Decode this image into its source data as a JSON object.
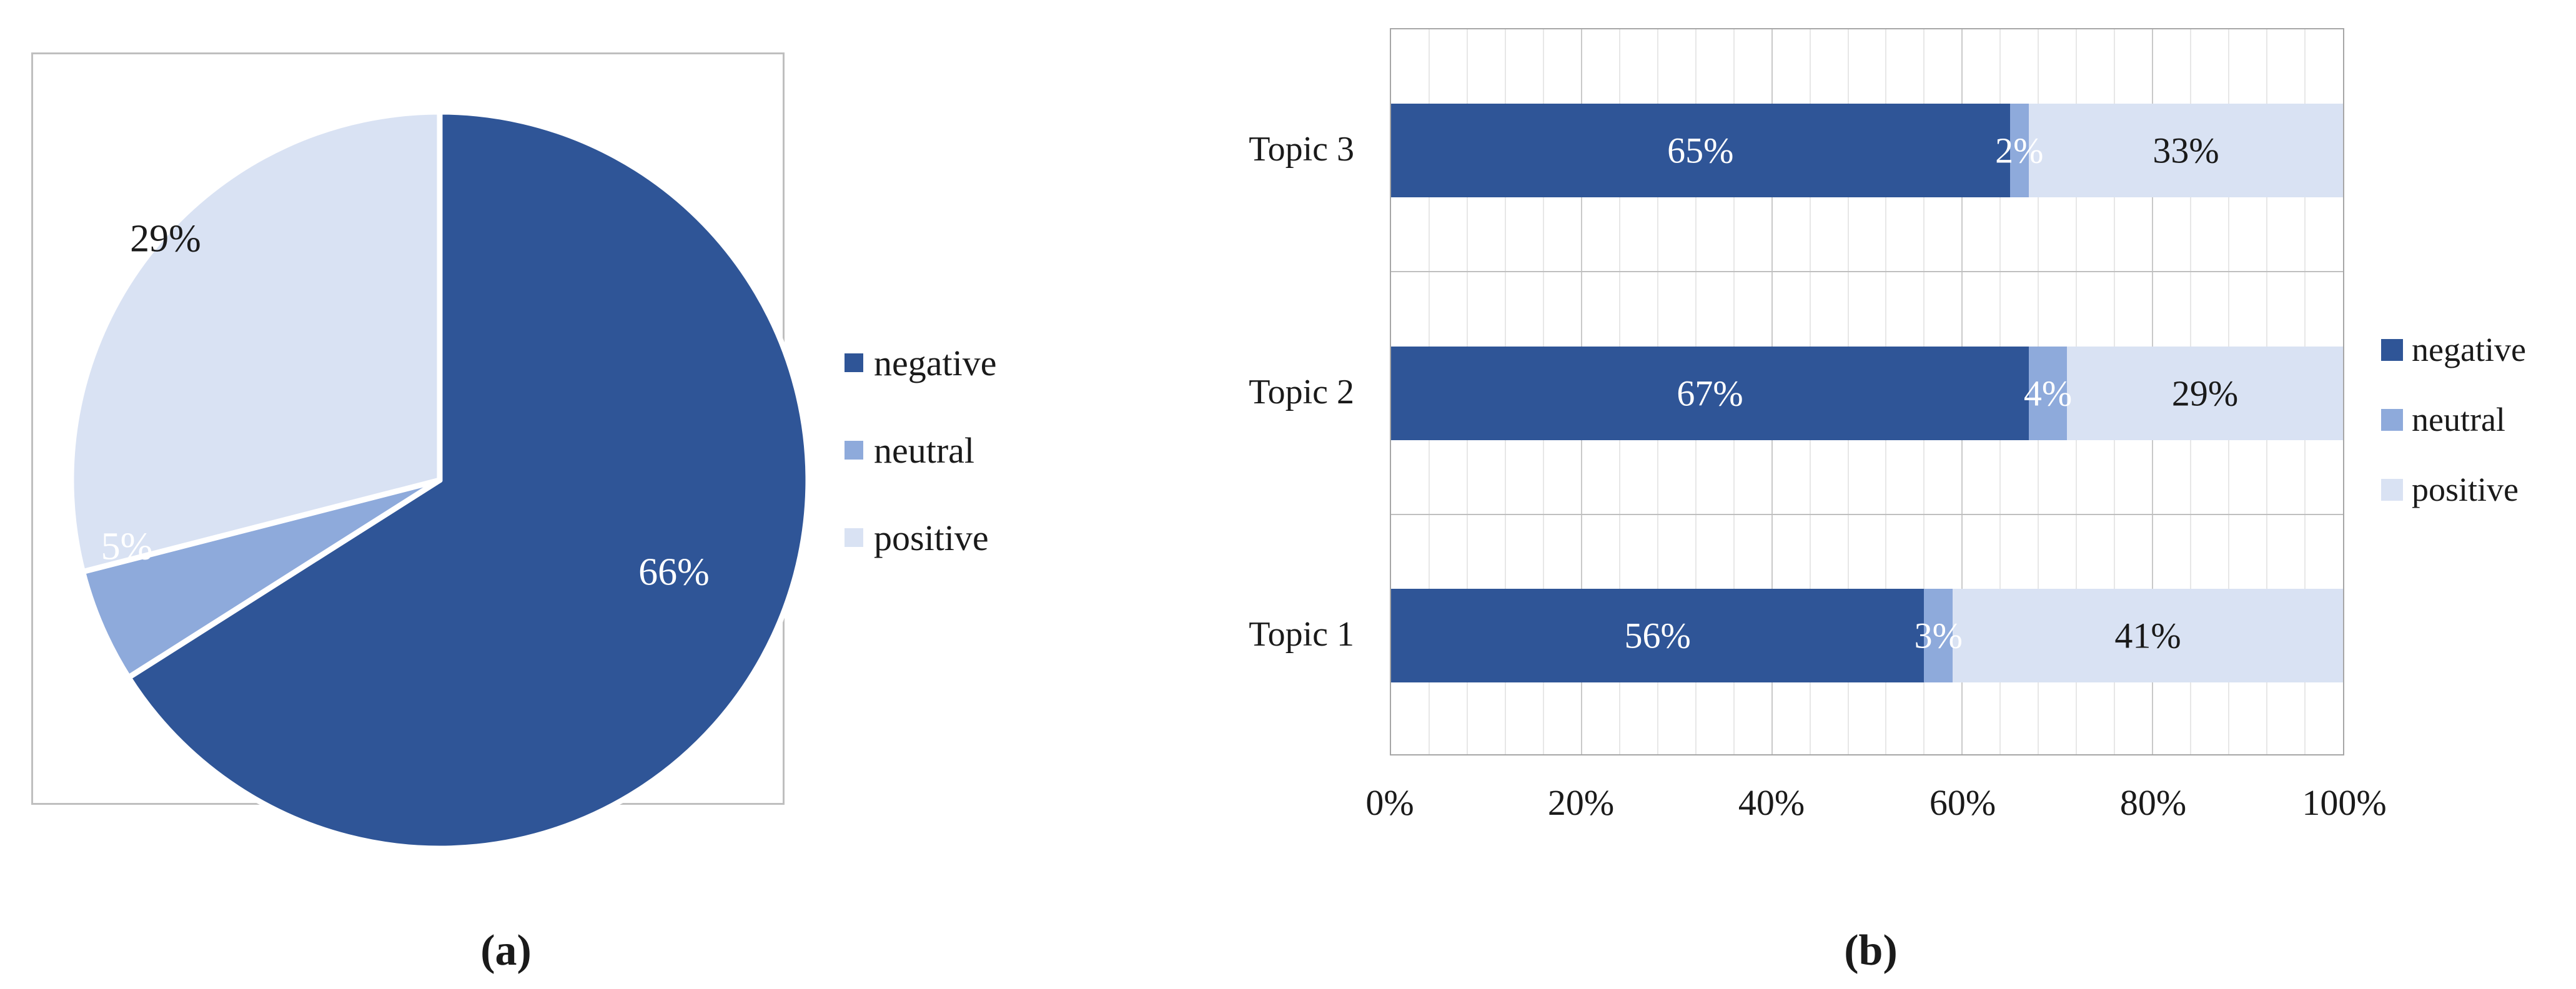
{
  "figure": {
    "captions": {
      "a": "(a)",
      "b": "(b)"
    }
  },
  "colors": {
    "negative": "#2F5597",
    "neutral": "#8EAADB",
    "positive": "#D9E2F3",
    "plot_border": "#A6A6A6",
    "gridline_major": "#C9C9C9",
    "gridline_minor": "#E7E7E7",
    "band_line": "#BFBFBF",
    "pie_box_border": "#BFBFBF",
    "label_on_dark": "#FFFFFF",
    "label_on_light": "#1A1A1A"
  },
  "chart_data": [
    {
      "type": "pie",
      "panel": "a",
      "labels": [
        "negative",
        "neutral",
        "positive"
      ],
      "values": [
        66,
        5,
        29
      ],
      "data_labels": [
        "66%",
        "5%",
        "29%"
      ],
      "data_label_colors": [
        "#FFFFFF",
        "#FFFFFF",
        "#1A1A1A"
      ],
      "colors": [
        "#2F5597",
        "#8EAADB",
        "#D9E2F3"
      ],
      "start_angle_deg": 0,
      "direction": "clockwise",
      "slice_border_color": "#FFFFFF",
      "legend_position": "right",
      "legend": [
        "negative",
        "neutral",
        "positive"
      ]
    },
    {
      "type": "bar",
      "subtype": "horizontal-stacked",
      "panel": "b",
      "categories": [
        "Topic 3",
        "Topic 2",
        "Topic 1"
      ],
      "series": [
        {
          "name": "negative",
          "values": [
            65,
            67,
            56
          ],
          "color": "#2F5597",
          "label_color": "#FFFFFF"
        },
        {
          "name": "neutral",
          "values": [
            2,
            4,
            3
          ],
          "color": "#8EAADB",
          "label_color": "#FFFFFF"
        },
        {
          "name": "positive",
          "values": [
            33,
            29,
            41
          ],
          "color": "#D9E2F3",
          "label_color": "#1A1A1A"
        }
      ],
      "rows": [
        {
          "category": "Topic 3",
          "segments": [
            {
              "series": "negative",
              "value": 65,
              "label": "65%"
            },
            {
              "series": "neutral",
              "value": 2,
              "label": "2%"
            },
            {
              "series": "positive",
              "value": 33,
              "label": "33%"
            }
          ]
        },
        {
          "category": "Topic 2",
          "segments": [
            {
              "series": "negative",
              "value": 67,
              "label": "67%"
            },
            {
              "series": "neutral",
              "value": 4,
              "label": "4%"
            },
            {
              "series": "positive",
              "value": 29,
              "label": "29%"
            }
          ]
        },
        {
          "category": "Topic 1",
          "segments": [
            {
              "series": "negative",
              "value": 56,
              "label": "56%"
            },
            {
              "series": "neutral",
              "value": 3,
              "label": "3%"
            },
            {
              "series": "positive",
              "value": 41,
              "label": "41%"
            }
          ]
        }
      ],
      "x_ticks": [
        "0%",
        "20%",
        "40%",
        "60%",
        "80%",
        "100%"
      ],
      "xlim": [
        0,
        100
      ],
      "major_unit_pct": 20,
      "minor_unit_pct": 4,
      "grid": true,
      "legend_position": "right",
      "legend": [
        "negative",
        "neutral",
        "positive"
      ]
    }
  ]
}
